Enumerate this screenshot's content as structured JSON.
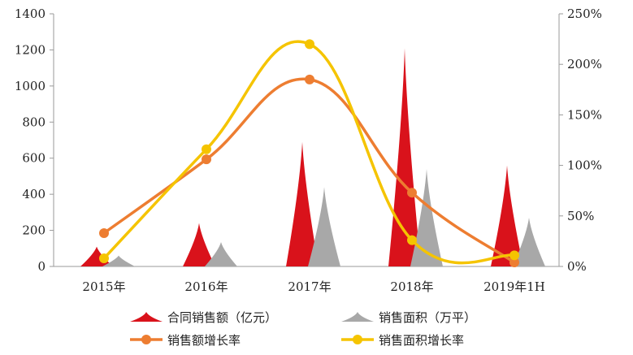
{
  "chart_data": {
    "type": "bar+line",
    "title": "",
    "categories": [
      "2015年",
      "2016年",
      "2017年",
      "2018年",
      "2019年1H"
    ],
    "left_axis": {
      "min": 0,
      "max": 1400,
      "step": 200,
      "ticks": [
        "0",
        "200",
        "400",
        "600",
        "800",
        "1000",
        "1200",
        "1400"
      ]
    },
    "right_axis": {
      "min": 0,
      "max": 2.5,
      "step": 0.5,
      "ticks": [
        "0%",
        "50%",
        "100%",
        "150%",
        "200%",
        "250%"
      ]
    },
    "series": [
      {
        "name": "合同销售额（亿元）",
        "kind": "peak",
        "axis": "left",
        "color": "#d9121b",
        "values": [
          110,
          240,
          690,
          1210,
          560
        ]
      },
      {
        "name": "销售面积（万平）",
        "kind": "peak",
        "axis": "left",
        "color": "#a8a8a8",
        "values": [
          60,
          135,
          440,
          540,
          270
        ]
      },
      {
        "name": "销售额增长率",
        "kind": "line",
        "axis": "right",
        "color": "#ed7d31",
        "values": [
          0.33,
          1.06,
          1.85,
          0.73,
          0.04
        ]
      },
      {
        "name": "销售面积增长率",
        "kind": "line",
        "axis": "right",
        "color": "#f5c400",
        "values": [
          0.08,
          1.16,
          2.2,
          0.26,
          0.11
        ]
      }
    ],
    "grid": false,
    "legend_position": "bottom"
  }
}
